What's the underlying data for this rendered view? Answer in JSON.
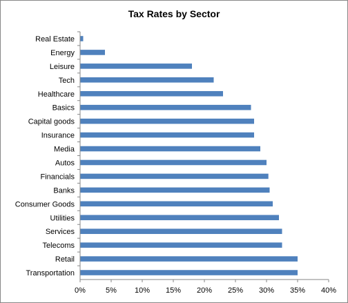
{
  "chart_data": {
    "type": "bar",
    "orientation": "horizontal",
    "title": "Tax Rates by Sector",
    "xlabel": "",
    "ylabel": "",
    "categories": [
      "Real Estate",
      "Energy",
      "Leisure",
      "Tech",
      "Healthcare",
      "Basics",
      "Capital goods",
      "Insurance",
      "Media",
      "Autos",
      "Financials",
      "Banks",
      "Consumer Goods",
      "Utilities",
      "Services",
      "Telecoms",
      "Retail",
      "Transportation"
    ],
    "values": [
      0.5,
      4,
      18,
      21.5,
      23,
      27.5,
      28,
      28,
      29,
      30,
      30.3,
      30.5,
      31,
      32,
      32.5,
      32.5,
      35,
      35
    ],
    "value_unit": "%",
    "xlim": [
      0,
      40
    ],
    "x_ticks": [
      0,
      5,
      10,
      15,
      20,
      25,
      30,
      35,
      40
    ],
    "x_tick_labels": [
      "0%",
      "5%",
      "10%",
      "15%",
      "20%",
      "25%",
      "30%",
      "35%",
      "40%"
    ],
    "grid": false,
    "legend": "none",
    "bar_color": "#4F81BD"
  }
}
